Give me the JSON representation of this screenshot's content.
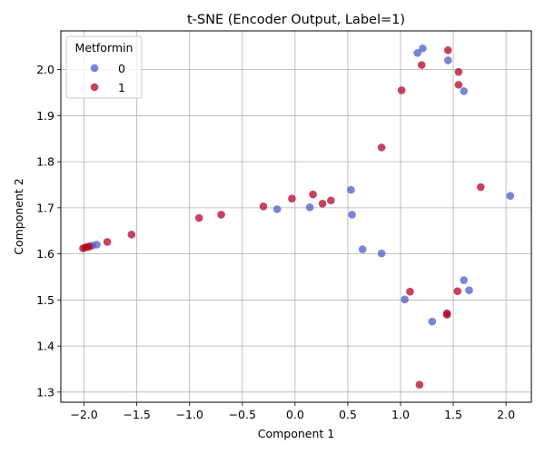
{
  "chart_data": {
    "type": "scatter",
    "title": "t-SNE (Encoder Output, Label=1)",
    "xlabel": "Component 1",
    "ylabel": "Component 2",
    "xlim": [
      -2.22,
      2.24
    ],
    "ylim": [
      1.278,
      2.084
    ],
    "xticks": [
      -2.0,
      -1.5,
      -1.0,
      -0.5,
      0.0,
      0.5,
      1.0,
      1.5,
      2.0
    ],
    "xtick_labels": [
      "−2.0",
      "−1.5",
      "−1.0",
      "−0.5",
      "0.0",
      "0.5",
      "1.0",
      "1.5",
      "2.0"
    ],
    "yticks": [
      1.3,
      1.4,
      1.5,
      1.6,
      1.7,
      1.8,
      1.9,
      2.0
    ],
    "ytick_labels": [
      "1.3",
      "1.4",
      "1.5",
      "1.6",
      "1.7",
      "1.8",
      "1.9",
      "2.0"
    ],
    "grid": true,
    "legend": {
      "title": "Metformin",
      "placement": "upper-left"
    },
    "series": [
      {
        "name": "0",
        "color": "#4c5ec8",
        "points": [
          [
            -1.88,
            1.62
          ],
          [
            -1.92,
            1.618
          ],
          [
            -0.17,
            1.697
          ],
          [
            0.14,
            1.701
          ],
          [
            0.53,
            1.739
          ],
          [
            0.54,
            1.685
          ],
          [
            0.64,
            1.61
          ],
          [
            0.82,
            1.601
          ],
          [
            1.04,
            1.501
          ],
          [
            1.16,
            2.036
          ],
          [
            1.21,
            2.046
          ],
          [
            1.3,
            1.453
          ],
          [
            1.45,
            2.02
          ],
          [
            1.6,
            1.953
          ],
          [
            1.6,
            1.543
          ],
          [
            1.65,
            1.521
          ],
          [
            2.04,
            1.726
          ]
        ]
      },
      {
        "name": "1",
        "color": "#b40426",
        "points": [
          [
            -2.01,
            1.612
          ],
          [
            -1.99,
            1.614
          ],
          [
            -1.97,
            1.615
          ],
          [
            -1.95,
            1.616
          ],
          [
            -1.78,
            1.626
          ],
          [
            -1.55,
            1.642
          ],
          [
            -0.91,
            1.678
          ],
          [
            -0.7,
            1.685
          ],
          [
            -0.3,
            1.703
          ],
          [
            -0.03,
            1.72
          ],
          [
            0.17,
            1.729
          ],
          [
            0.26,
            1.709
          ],
          [
            0.34,
            1.716
          ],
          [
            0.82,
            1.831
          ],
          [
            1.01,
            1.955
          ],
          [
            1.09,
            1.518
          ],
          [
            1.18,
            1.316
          ],
          [
            1.2,
            2.01
          ],
          [
            1.44,
            1.471
          ],
          [
            1.44,
            1.468
          ],
          [
            1.45,
            2.042
          ],
          [
            1.54,
            1.519
          ],
          [
            1.55,
            1.995
          ],
          [
            1.55,
            1.967
          ],
          [
            1.76,
            1.745
          ]
        ]
      }
    ]
  }
}
